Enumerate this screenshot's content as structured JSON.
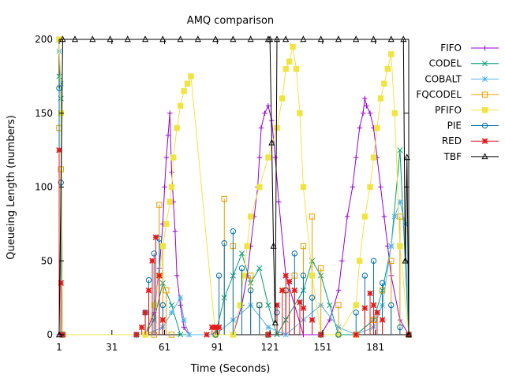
{
  "chart_data": {
    "type": "line",
    "title": "AMQ comparison",
    "xlabel": "Time (Seconds)",
    "ylabel": "Queueing Length (numbers)",
    "xlim": [
      1,
      200
    ],
    "ylim": [
      0,
      200
    ],
    "xticks": [
      1,
      31,
      61,
      91,
      121,
      151,
      181
    ],
    "yticks": [
      0,
      50,
      100,
      150,
      200
    ],
    "grid": false,
    "legend_position": "right",
    "series": [
      {
        "name": "FIFO",
        "color": "#9400d3",
        "marker": "plus",
        "x": [
          1,
          2,
          3,
          50,
          55,
          58,
          60,
          61,
          62,
          63,
          64,
          65,
          66,
          67,
          68,
          70,
          72,
          75,
          100,
          105,
          108,
          110,
          112,
          114,
          115,
          116,
          118,
          120,
          122,
          124,
          126,
          130,
          140,
          150,
          155,
          160,
          162,
          165,
          168,
          170,
          172,
          174,
          175,
          176,
          178,
          180,
          182,
          184,
          186,
          188,
          190,
          195,
          200
        ],
        "y": [
          0,
          0,
          0,
          0,
          15,
          45,
          75,
          100,
          120,
          135,
          150,
          110,
          90,
          70,
          40,
          20,
          5,
          0,
          0,
          20,
          40,
          60,
          80,
          100,
          120,
          140,
          150,
          155,
          145,
          120,
          90,
          40,
          0,
          0,
          10,
          30,
          50,
          80,
          100,
          120,
          140,
          150,
          160,
          155,
          150,
          140,
          120,
          100,
          80,
          60,
          40,
          10,
          0
        ]
      },
      {
        "name": "CODEL",
        "color": "#009e73",
        "marker": "cross",
        "x": [
          1,
          2,
          3,
          50,
          55,
          60,
          65,
          70,
          90,
          95,
          100,
          105,
          110,
          115,
          120,
          125,
          130,
          140,
          145,
          150,
          155,
          160,
          170,
          180,
          185,
          190,
          195,
          200
        ],
        "y": [
          175,
          160,
          0,
          0,
          10,
          35,
          20,
          0,
          0,
          25,
          40,
          55,
          35,
          45,
          20,
          0,
          10,
          30,
          50,
          40,
          20,
          0,
          0,
          10,
          30,
          60,
          125,
          0
        ]
      },
      {
        "name": "COBALT",
        "color": "#56b4e9",
        "marker": "star",
        "x": [
          1,
          2,
          3,
          50,
          60,
          65,
          70,
          72,
          75,
          90,
          100,
          110,
          120,
          130,
          140,
          150,
          160,
          170,
          180,
          185,
          190,
          192,
          195,
          198,
          200
        ],
        "y": [
          192,
          170,
          0,
          0,
          5,
          15,
          25,
          10,
          0,
          0,
          10,
          20,
          5,
          0,
          10,
          20,
          5,
          0,
          5,
          20,
          60,
          80,
          90,
          75,
          0
        ]
      },
      {
        "name": "FQCODEL",
        "color": "#e69f00",
        "marker": "box",
        "x": [
          1,
          2,
          3,
          55,
          58,
          60,
          62,
          65,
          90,
          95,
          100,
          110,
          115,
          120,
          130,
          135,
          140,
          145,
          150,
          160,
          170,
          180,
          185,
          190,
          195,
          200
        ],
        "y": [
          140,
          112,
          0,
          0,
          88,
          60,
          30,
          0,
          0,
          92,
          60,
          40,
          20,
          0,
          30,
          40,
          60,
          80,
          45,
          20,
          0,
          10,
          30,
          50,
          80,
          0
        ],
        "markers_only": true
      },
      {
        "name": "PFIFO",
        "color": "#f0e442",
        "marker": "box-filled",
        "x": [
          1,
          2,
          3,
          50,
          55,
          58,
          60,
          62,
          64,
          65,
          66,
          68,
          70,
          72,
          74,
          76,
          90,
          100,
          104,
          106,
          108,
          110,
          115,
          120,
          125,
          128,
          130,
          132,
          134,
          136,
          138,
          140,
          145,
          150,
          160,
          170,
          172,
          175,
          178,
          180,
          182,
          184,
          186,
          188,
          190,
          192,
          195,
          200
        ],
        "y": [
          200,
          150,
          0,
          0,
          20,
          40,
          60,
          75,
          90,
          100,
          120,
          140,
          155,
          165,
          170,
          175,
          0,
          0,
          20,
          40,
          60,
          80,
          100,
          120,
          140,
          160,
          180,
          185,
          195,
          180,
          150,
          100,
          40,
          0,
          0,
          20,
          50,
          80,
          100,
          120,
          140,
          160,
          170,
          180,
          190,
          150,
          60,
          0
        ]
      },
      {
        "name": "PIE",
        "color": "#0072b2",
        "marker": "circle",
        "x": [
          1,
          2,
          3,
          45,
          50,
          52,
          55,
          58,
          60,
          90,
          92,
          95,
          100,
          105,
          110,
          115,
          120,
          125,
          130,
          135,
          140,
          145,
          150,
          160,
          170,
          175,
          180,
          185,
          190,
          195,
          200
        ],
        "y": [
          167,
          103,
          0,
          0,
          15,
          37,
          55,
          65,
          20,
          0,
          40,
          62,
          70,
          45,
          30,
          20,
          0,
          15,
          30,
          55,
          40,
          25,
          0,
          0,
          15,
          40,
          50,
          35,
          20,
          5,
          0
        ],
        "markers_only": true
      },
      {
        "name": "RED",
        "color": "#e41a1c",
        "marker": "star-filled",
        "x": [
          1,
          2,
          3,
          45,
          48,
          50,
          52,
          54,
          56,
          58,
          60,
          85,
          88,
          90,
          92,
          120,
          125,
          128,
          130,
          132,
          135,
          138,
          140,
          145,
          150,
          170,
          175,
          178,
          180,
          182,
          185,
          200
        ],
        "y": [
          125,
          35,
          0,
          0,
          5,
          15,
          30,
          50,
          66,
          40,
          10,
          0,
          5,
          5,
          5,
          0,
          20,
          30,
          40,
          36,
          30,
          22,
          18,
          10,
          0,
          0,
          18,
          28,
          20,
          15,
          10,
          0
        ],
        "markers_only": true
      },
      {
        "name": "TBF",
        "color": "#000000",
        "marker": "triangle",
        "x": [
          1,
          3,
          10,
          20,
          30,
          40,
          50,
          60,
          70,
          80,
          90,
          100,
          110,
          120,
          121,
          122,
          123,
          124,
          125,
          130,
          140,
          150,
          160,
          170,
          180,
          190,
          197,
          198,
          199,
          200
        ],
        "y": [
          0,
          200,
          200,
          200,
          200,
          200,
          200,
          200,
          200,
          200,
          200,
          200,
          200,
          200,
          200,
          130,
          60,
          8,
          200,
          200,
          200,
          200,
          200,
          200,
          200,
          200,
          200,
          50,
          120,
          0
        ]
      }
    ]
  }
}
